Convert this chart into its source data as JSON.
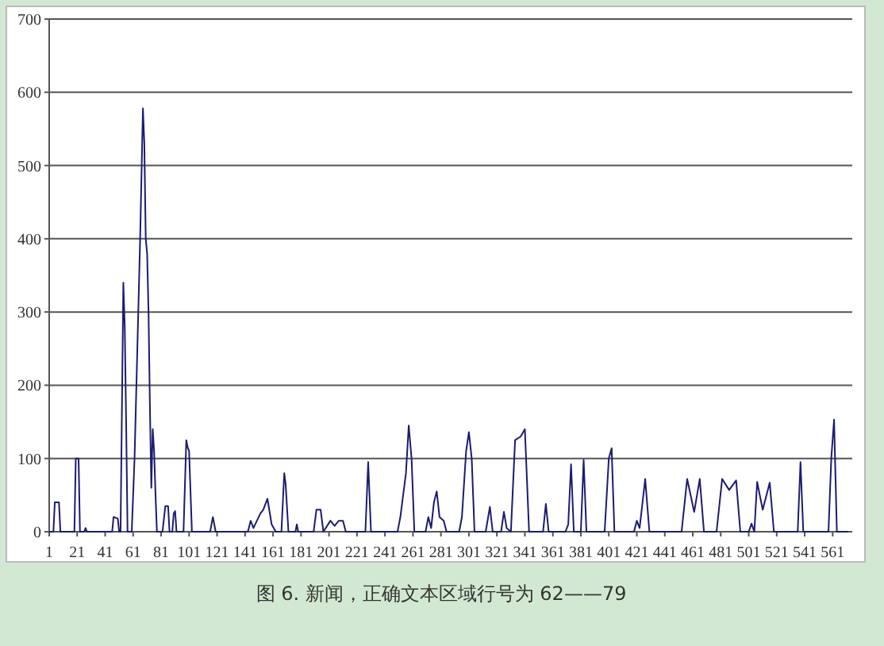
{
  "chart_data": {
    "type": "line",
    "x": [
      1,
      4,
      5,
      8,
      9,
      19,
      20,
      22,
      23,
      26,
      27,
      28,
      46,
      47,
      50,
      51,
      52,
      54,
      55,
      56,
      57,
      60,
      62,
      64,
      66,
      68,
      69,
      70,
      71,
      72,
      73,
      74,
      75,
      76,
      77,
      78,
      82,
      84,
      86,
      87,
      89,
      90,
      91,
      92,
      97,
      99,
      100,
      101,
      103,
      116,
      118,
      120,
      143,
      145,
      147,
      152,
      154,
      157,
      160,
      163,
      167,
      169,
      170,
      172,
      177,
      178,
      179,
      190,
      192,
      195,
      197,
      202,
      205,
      208,
      211,
      213,
      227,
      229,
      231,
      250,
      252,
      256,
      258,
      260,
      262,
      270,
      272,
      274,
      276,
      278,
      280,
      283,
      285,
      294,
      296,
      299,
      301,
      303,
      305,
      313,
      316,
      318,
      324,
      326,
      328,
      331,
      334,
      338,
      341,
      344,
      354,
      356,
      358,
      370,
      372,
      374,
      376,
      381,
      383,
      385,
      398,
      401,
      403,
      405,
      419,
      421,
      423,
      427,
      430,
      453,
      457,
      462,
      466,
      469,
      478,
      482,
      487,
      492,
      495,
      501,
      503,
      505,
      507,
      511,
      516,
      519,
      536,
      538,
      540,
      558,
      560,
      562,
      564,
      572
    ],
    "series": [
      {
        "color": "#1c1c70",
        "values": [
          0,
          0,
          40,
          40,
          0,
          0,
          100,
          100,
          0,
          0,
          5,
          0,
          0,
          20,
          18,
          0,
          0,
          340,
          280,
          150,
          0,
          0,
          100,
          250,
          400,
          578,
          530,
          400,
          380,
          300,
          170,
          60,
          140,
          110,
          50,
          0,
          0,
          35,
          35,
          0,
          0,
          25,
          28,
          0,
          0,
          125,
          115,
          110,
          0,
          0,
          20,
          0,
          0,
          15,
          5,
          25,
          30,
          45,
          10,
          0,
          0,
          80,
          65,
          0,
          0,
          10,
          0,
          0,
          30,
          30,
          0,
          15,
          8,
          15,
          15,
          0,
          0,
          95,
          0,
          0,
          20,
          80,
          145,
          100,
          0,
          0,
          20,
          5,
          40,
          55,
          20,
          15,
          0,
          0,
          20,
          110,
          136,
          100,
          0,
          0,
          34,
          0,
          0,
          27,
          5,
          0,
          125,
          130,
          140,
          0,
          0,
          38,
          0,
          0,
          10,
          92,
          0,
          0,
          98,
          0,
          0,
          100,
          114,
          0,
          0,
          15,
          5,
          72,
          0,
          0,
          72,
          27,
          72,
          0,
          0,
          72,
          57,
          70,
          0,
          0,
          11,
          0,
          68,
          30,
          67,
          0,
          0,
          95,
          0,
          0,
          100,
          153,
          0,
          0
        ]
      }
    ],
    "xlim": [
      1,
      575
    ],
    "xticks": [
      1,
      21,
      41,
      61,
      81,
      101,
      121,
      141,
      161,
      181,
      201,
      221,
      241,
      261,
      281,
      301,
      321,
      341,
      361,
      381,
      401,
      421,
      441,
      461,
      481,
      501,
      521,
      541,
      561
    ],
    "ylim": [
      0,
      700
    ],
    "yticks": [
      0,
      100,
      200,
      300,
      400,
      500,
      600,
      700
    ],
    "grid": "y",
    "line_style": "solid",
    "marker": "none",
    "annotations": [
      "图 6. 新闻，正确文本区域行号为 62——79"
    ]
  }
}
